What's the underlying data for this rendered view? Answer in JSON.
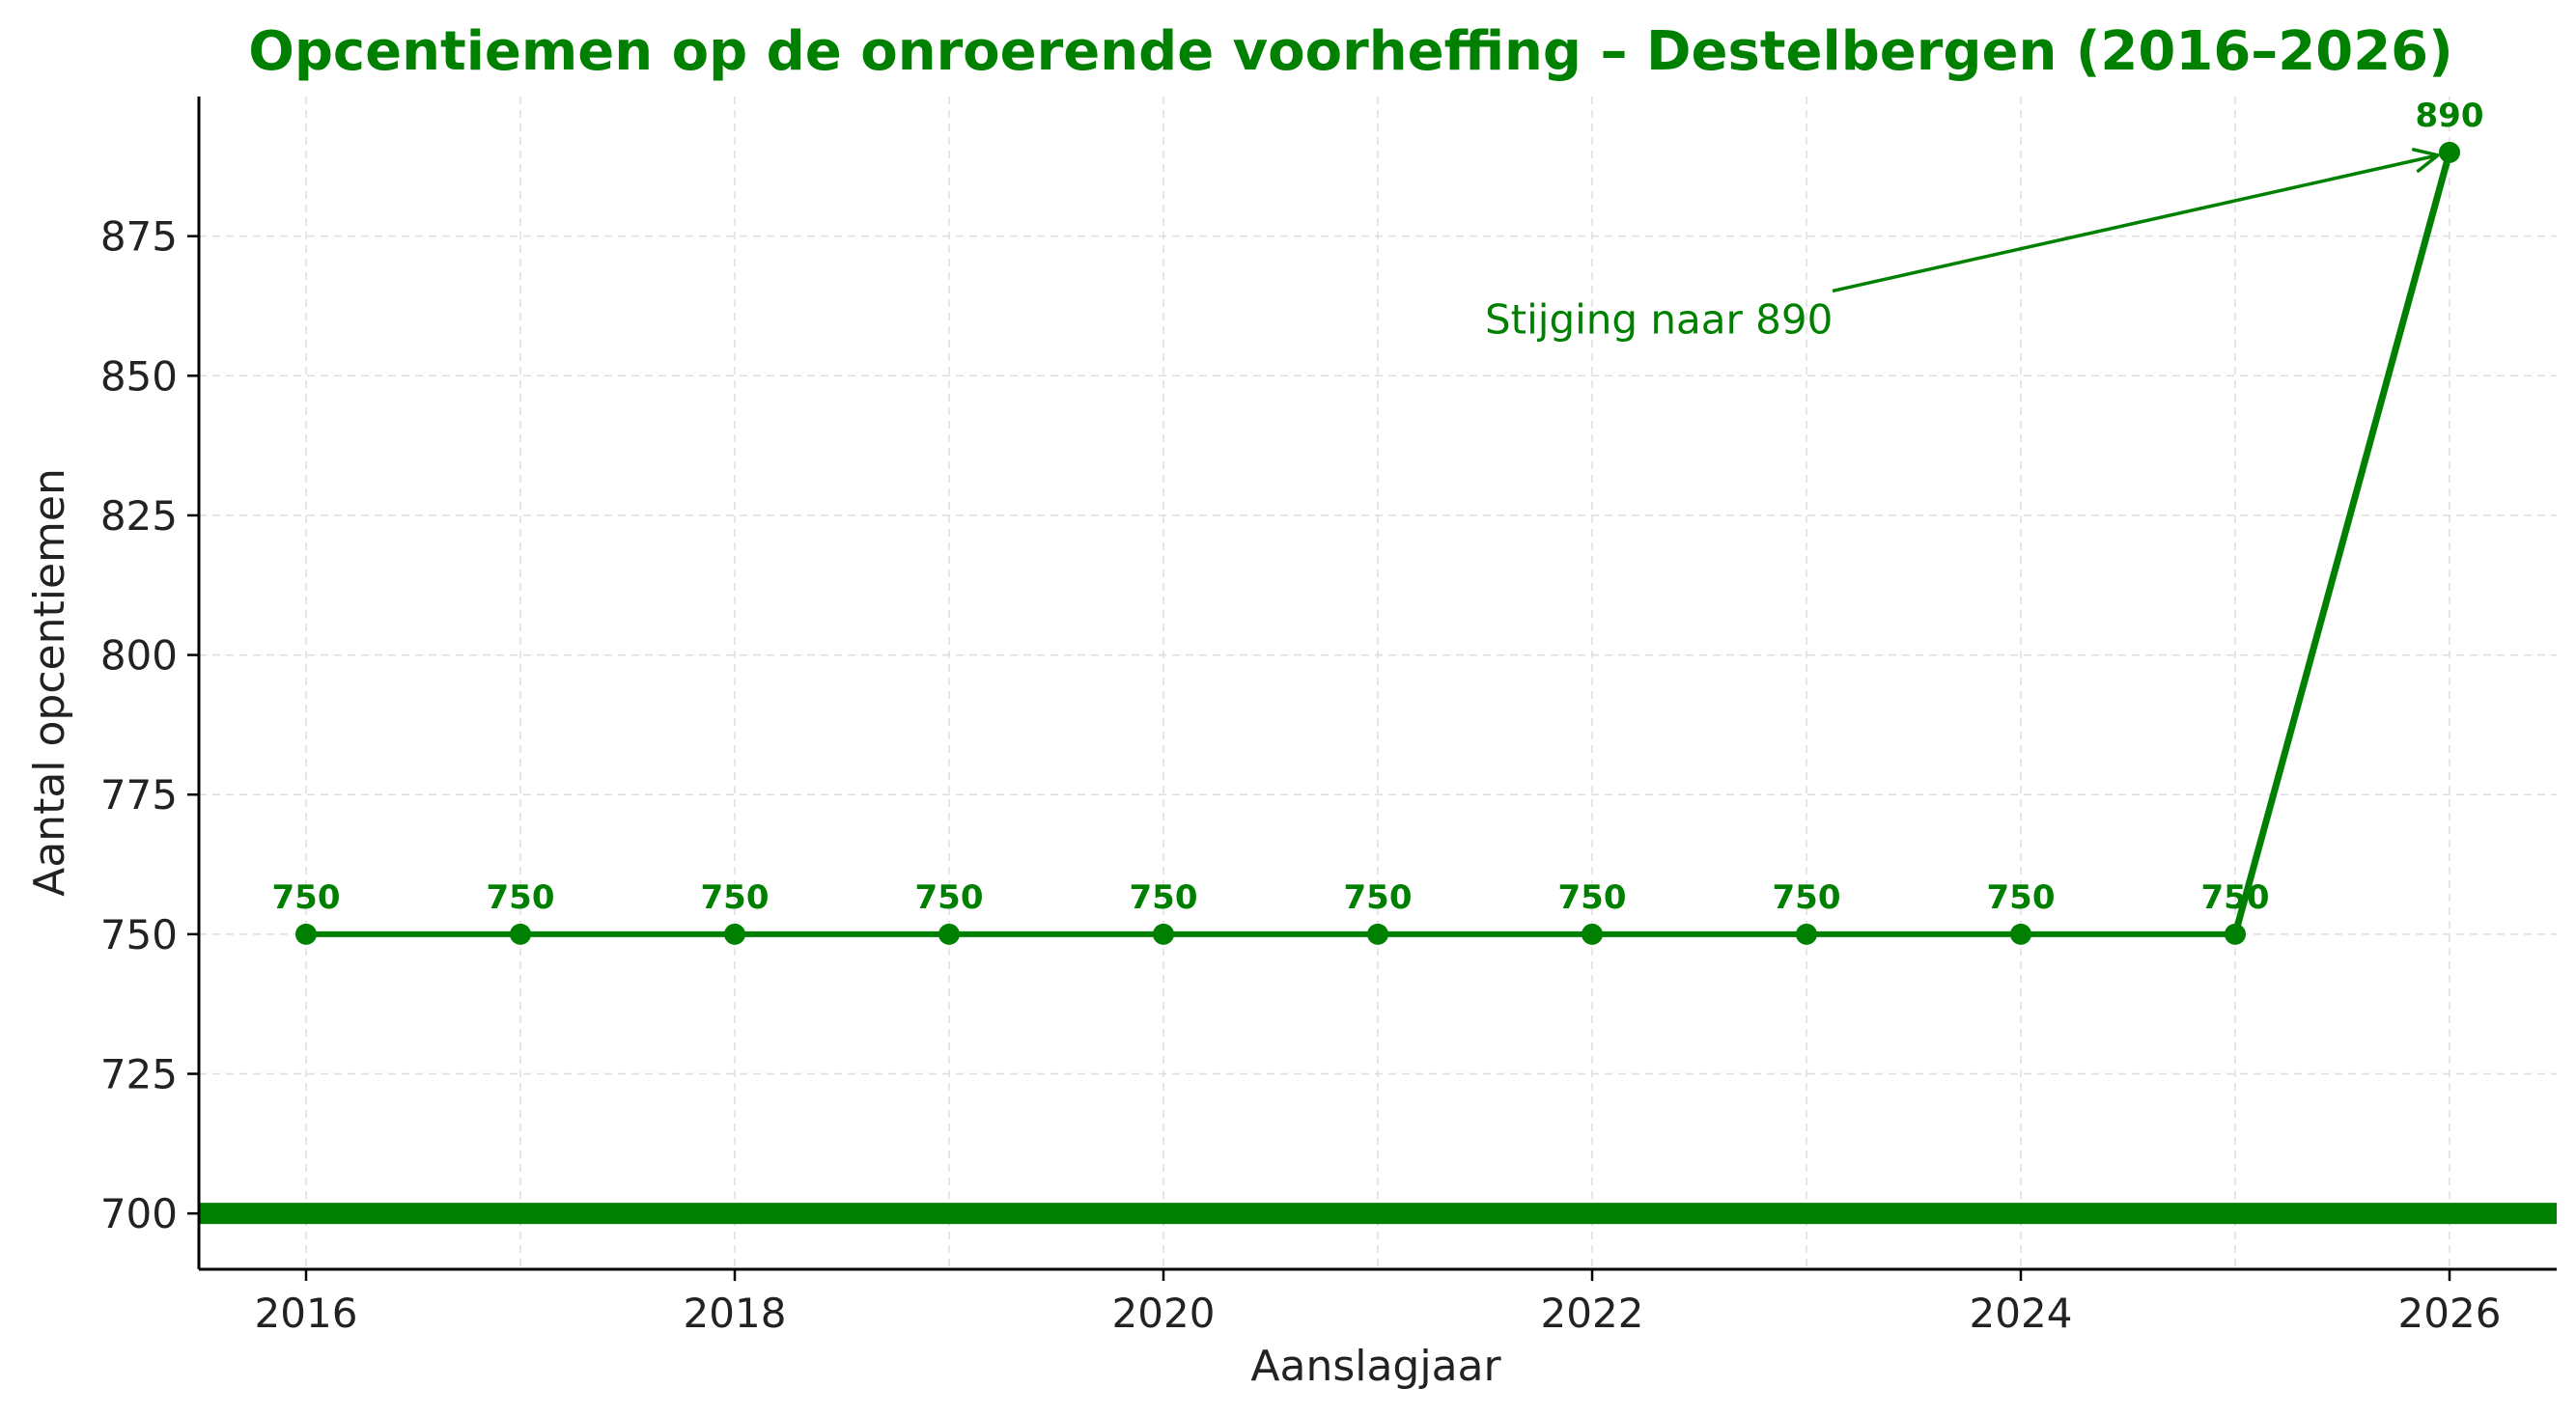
{
  "chart_data": {
    "type": "line",
    "title": "Opcentiemen op de onroerende voorheffing – Destelbergen (2016–2026)",
    "xlabel": "Aanslagjaar",
    "ylabel": "Aantal opcentiemen",
    "x": [
      2016,
      2017,
      2018,
      2019,
      2020,
      2021,
      2022,
      2023,
      2024,
      2025,
      2026
    ],
    "series": [
      {
        "values": [
          750,
          750,
          750,
          750,
          750,
          750,
          750,
          750,
          750,
          750,
          890
        ],
        "data_labels": [
          "750",
          "750",
          "750",
          "750",
          "750",
          "750",
          "750",
          "750",
          "750",
          "750",
          "890"
        ]
      }
    ],
    "xlim": [
      2015.5,
      2026.5
    ],
    "ylim": [
      690,
      900
    ],
    "xticks": [
      2016,
      2018,
      2020,
      2022,
      2024,
      2026
    ],
    "xtick_labels": [
      "2016",
      "2018",
      "2020",
      "2022",
      "2024",
      "2026"
    ],
    "yticks": [
      700,
      725,
      750,
      775,
      800,
      825,
      850,
      875
    ],
    "ytick_labels": [
      "700",
      "725",
      "750",
      "775",
      "800",
      "825",
      "850",
      "875"
    ],
    "reference_line": {
      "y": 700
    },
    "annotation": {
      "text": "Stijging naar 890",
      "text_x": 2021.5,
      "text_y": 860,
      "target_x": 2026,
      "target_y": 890
    },
    "grid": true,
    "grid_style": "dashed",
    "colors": {
      "series": "#008000",
      "title": "#008000",
      "axis": "#000000",
      "grid": "#dddddd"
    }
  }
}
